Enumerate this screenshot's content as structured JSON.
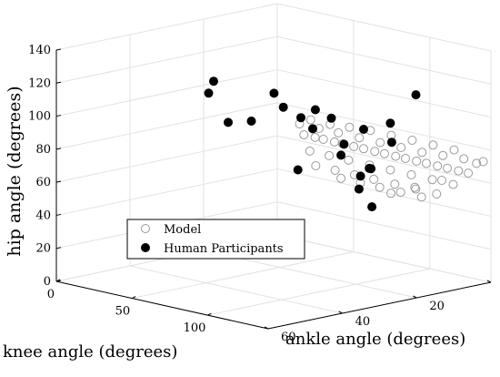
{
  "chart_data": {
    "type": "scatter",
    "projection": "3d",
    "grid": true,
    "legend_position": "bottom-left",
    "xlabel": "ankle angle (degrees)",
    "ylabel": "knee angle (degrees)",
    "zlabel": "hip angle (degrees)",
    "xlim": [
      0,
      60
    ],
    "ylim": [
      0,
      140
    ],
    "zlim": [
      0,
      140
    ],
    "xticks": [
      "0",
      "20",
      "40",
      "60"
    ],
    "yticks": [
      "0",
      "50",
      "100"
    ],
    "zticks": [
      "0",
      "20",
      "40",
      "60",
      "80",
      "100",
      "120",
      "140"
    ],
    "colors": {
      "model": "#9a9a9a",
      "human": "#000000",
      "grid": "#e2e2e2",
      "axis": "#000000"
    },
    "series": [
      {
        "name": "Model",
        "marker": "open-circle",
        "points": [
          [
            0,
            135,
            72
          ],
          [
            4,
            132,
            75
          ],
          [
            8,
            128,
            78
          ],
          [
            12,
            124,
            81
          ],
          [
            16,
            120,
            85
          ],
          [
            20,
            116,
            89
          ],
          [
            24,
            112,
            93
          ],
          [
            28,
            108,
            97
          ],
          [
            32,
            105,
            101
          ],
          [
            36,
            102,
            105
          ],
          [
            2,
            130,
            65
          ],
          [
            6,
            126,
            69
          ],
          [
            10,
            122,
            73
          ],
          [
            14,
            118,
            77
          ],
          [
            18,
            114,
            81
          ],
          [
            22,
            110,
            85
          ],
          [
            26,
            106,
            89
          ],
          [
            30,
            103,
            93
          ],
          [
            34,
            100,
            97
          ],
          [
            4,
            125,
            58
          ],
          [
            8,
            121,
            62
          ],
          [
            12,
            117,
            66
          ],
          [
            16,
            113,
            70
          ],
          [
            20,
            109,
            74
          ],
          [
            24,
            105,
            78
          ],
          [
            28,
            102,
            82
          ],
          [
            32,
            99,
            86
          ],
          [
            6,
            119,
            52
          ],
          [
            10,
            115,
            56
          ],
          [
            14,
            111,
            60
          ],
          [
            18,
            107,
            64
          ],
          [
            22,
            104,
            68
          ],
          [
            26,
            101,
            72
          ],
          [
            30,
            98,
            76
          ],
          [
            5,
            128,
            80
          ],
          [
            9,
            124,
            84
          ],
          [
            13,
            120,
            88
          ],
          [
            17,
            116,
            92
          ],
          [
            21,
            112,
            96
          ],
          [
            25,
            108,
            99
          ],
          [
            29,
            105,
            102
          ],
          [
            33,
            102,
            106
          ],
          [
            3,
            126,
            66
          ],
          [
            7,
            122,
            70
          ],
          [
            11,
            118,
            74
          ],
          [
            15,
            114,
            78
          ],
          [
            19,
            110,
            82
          ],
          [
            23,
            106,
            86
          ],
          [
            27,
            103,
            90
          ],
          [
            31,
            100,
            94
          ],
          [
            8,
            114,
            50
          ],
          [
            12,
            110,
            54
          ],
          [
            16,
            106,
            58
          ],
          [
            20,
            103,
            62
          ],
          [
            24,
            100,
            66
          ],
          [
            1,
            133,
            71
          ],
          [
            5,
            120,
            60
          ],
          [
            9,
            112,
            56
          ],
          [
            13,
            106,
            53
          ]
        ]
      },
      {
        "name": "Human Participants",
        "marker": "filled-circle",
        "points": [
          [
            23,
            130,
            105
          ],
          [
            12,
            120,
            115
          ],
          [
            42,
            60,
            125
          ],
          [
            26,
            88,
            106
          ],
          [
            38,
            90,
            122
          ],
          [
            33,
            84,
            110
          ],
          [
            34,
            98,
            107
          ],
          [
            15,
            93,
            90
          ],
          [
            24,
            102,
            87
          ],
          [
            27,
            101,
            104
          ],
          [
            14,
            109,
            85
          ],
          [
            43,
            72,
            103
          ],
          [
            30,
            96,
            98
          ],
          [
            18,
            104,
            70
          ],
          [
            20,
            110,
            72
          ],
          [
            22,
            107,
            60
          ],
          [
            21,
            113,
            50
          ],
          [
            34,
            96,
            75
          ],
          [
            22,
            108,
            68
          ],
          [
            40,
            80,
            104
          ],
          [
            45,
            64,
            120
          ],
          [
            24,
            100,
            80
          ]
        ]
      }
    ]
  }
}
